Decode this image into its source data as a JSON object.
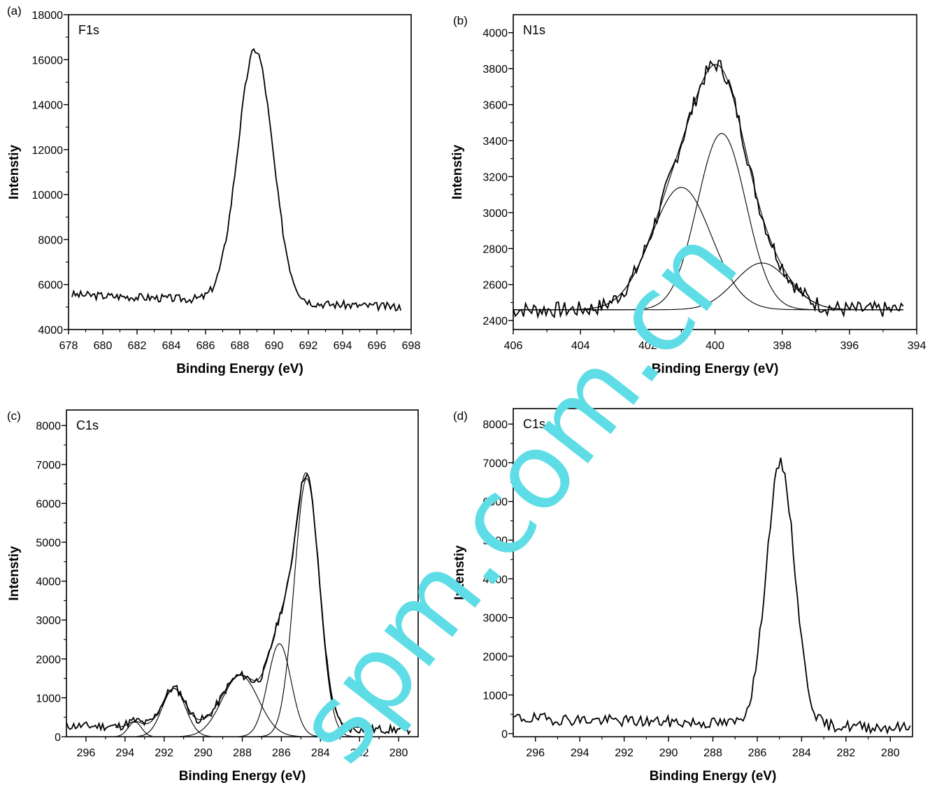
{
  "watermark": {
    "text": "spm.com.cn",
    "color": "#5fdde6"
  },
  "chart_data": [
    {
      "panel": "(a)",
      "type": "line",
      "peak_label": "F1s",
      "xlabel": "Binding Energy (eV)",
      "ylabel": "Intenstiy",
      "xlim": [
        678,
        698
      ],
      "ylim": [
        4000,
        18000
      ],
      "x_reversed": false,
      "xticks": [
        678,
        680,
        682,
        684,
        686,
        688,
        690,
        692,
        694,
        696,
        698
      ],
      "yticks": [
        4000,
        6000,
        8000,
        10000,
        12000,
        14000,
        16000,
        18000
      ],
      "series": [
        {
          "role": "measured",
          "x_range": [
            678.2,
            697.4
          ],
          "background": [
            5550,
            5000
          ],
          "peaks": [
            {
              "center": 688.9,
              "height": 11200,
              "fwhm": 2.4
            }
          ],
          "noise": 180,
          "seed": 3
        }
      ]
    },
    {
      "panel": "(b)",
      "type": "line",
      "peak_label": "N1s",
      "xlabel": "Binding Energy (eV)",
      "ylabel": "Intenstiy",
      "xlim": [
        406,
        394
      ],
      "ylim": [
        2350,
        4100
      ],
      "x_reversed": true,
      "xticks": [
        406,
        404,
        402,
        400,
        398,
        396,
        394
      ],
      "yticks": [
        2400,
        2600,
        2800,
        3000,
        3200,
        3400,
        3600,
        3800,
        4000
      ],
      "series": [
        {
          "role": "measured",
          "x_range": [
            406,
            394.4
          ],
          "background": [
            2460,
            2460
          ],
          "peaks": [
            {
              "center": 401.0,
              "height": 680,
              "fwhm": 2.1
            },
            {
              "center": 399.8,
              "height": 980,
              "fwhm": 1.7
            },
            {
              "center": 398.6,
              "height": 260,
              "fwhm": 1.9
            }
          ],
          "noise": 45,
          "seed": 7
        },
        {
          "role": "envelope",
          "x_range": [
            406,
            394.4
          ],
          "background": [
            2460,
            2460
          ],
          "peaks": [
            {
              "center": 401.0,
              "height": 680,
              "fwhm": 2.1
            },
            {
              "center": 399.8,
              "height": 980,
              "fwhm": 1.7
            },
            {
              "center": 398.6,
              "height": 260,
              "fwhm": 1.9
            }
          ]
        },
        {
          "role": "component",
          "x_range": [
            406,
            394.4
          ],
          "background": [
            2460,
            2460
          ],
          "peaks": [
            {
              "center": 401.0,
              "height": 680,
              "fwhm": 2.1
            }
          ]
        },
        {
          "role": "component",
          "x_range": [
            406,
            394.4
          ],
          "background": [
            2460,
            2460
          ],
          "peaks": [
            {
              "center": 399.8,
              "height": 980,
              "fwhm": 1.7
            }
          ]
        },
        {
          "role": "component",
          "x_range": [
            406,
            394.4
          ],
          "background": [
            2460,
            2460
          ],
          "peaks": [
            {
              "center": 398.6,
              "height": 260,
              "fwhm": 1.9
            }
          ]
        }
      ]
    },
    {
      "panel": "(c)",
      "type": "line",
      "peak_label": "C1s",
      "xlabel": "Binding Energy (eV)",
      "ylabel": "Intenstiy",
      "xlim": [
        297,
        279
      ],
      "ylim": [
        0,
        8400
      ],
      "x_reversed": true,
      "xticks": [
        296,
        294,
        292,
        290,
        288,
        286,
        284,
        282,
        280
      ],
      "yticks": [
        0,
        1000,
        2000,
        3000,
        4000,
        5000,
        6000,
        7000,
        8000
      ],
      "series": [
        {
          "role": "measured",
          "x_range": [
            297,
            279.4
          ],
          "background": [
            280,
            180
          ],
          "peaks": [
            {
              "center": 293.5,
              "height": 150,
              "fwhm": 0.8
            },
            {
              "center": 291.5,
              "height": 1000,
              "fwhm": 1.4
            },
            {
              "center": 288.1,
              "height": 1340,
              "fwhm": 2.2
            },
            {
              "center": 286.1,
              "height": 2150,
              "fwhm": 1.4
            },
            {
              "center": 284.7,
              "height": 6400,
              "fwhm": 1.5
            }
          ],
          "noise": 110,
          "seed": 11
        },
        {
          "role": "envelope",
          "x_range": [
            294.5,
            281.5
          ],
          "background": [
            240,
            240
          ],
          "peaks": [
            {
              "center": 293.5,
              "height": 150,
              "fwhm": 0.8
            },
            {
              "center": 291.5,
              "height": 1000,
              "fwhm": 1.4
            },
            {
              "center": 288.1,
              "height": 1340,
              "fwhm": 2.2
            },
            {
              "center": 286.1,
              "height": 2150,
              "fwhm": 1.4
            },
            {
              "center": 284.7,
              "height": 6400,
              "fwhm": 1.5
            }
          ]
        },
        {
          "role": "component",
          "x_range": [
            294.5,
            292.6
          ],
          "background": [
            0,
            0
          ],
          "peaks": [
            {
              "center": 293.5,
              "height": 380,
              "fwhm": 0.8
            }
          ]
        },
        {
          "role": "component",
          "x_range": [
            293.4,
            289.6
          ],
          "background": [
            0,
            0
          ],
          "peaks": [
            {
              "center": 291.5,
              "height": 1240,
              "fwhm": 1.4
            }
          ]
        },
        {
          "role": "component",
          "x_range": [
            291.2,
            285.0
          ],
          "background": [
            0,
            0
          ],
          "peaks": [
            {
              "center": 288.1,
              "height": 1580,
              "fwhm": 2.2
            }
          ]
        },
        {
          "role": "component",
          "x_range": [
            288.2,
            284.0
          ],
          "background": [
            0,
            0
          ],
          "peaks": [
            {
              "center": 286.1,
              "height": 2390,
              "fwhm": 1.4
            }
          ]
        },
        {
          "role": "component",
          "x_range": [
            288.0,
            282.0
          ],
          "background": [
            0,
            0
          ],
          "peaks": [
            {
              "center": 284.7,
              "height": 6640,
              "fwhm": 1.5
            }
          ]
        }
      ]
    },
    {
      "panel": "(d)",
      "type": "line",
      "peak_label": "C1s",
      "xlabel": "Binding Energy (eV)",
      "ylabel": "Intenstiy",
      "xlim": [
        297,
        279
      ],
      "ylim": [
        -80,
        8400
      ],
      "x_reversed": true,
      "xticks": [
        296,
        294,
        292,
        290,
        288,
        286,
        284,
        282,
        280
      ],
      "yticks": [
        0,
        1000,
        2000,
        3000,
        4000,
        5000,
        6000,
        7000,
        8000
      ],
      "series": [
        {
          "role": "measured",
          "x_range": [
            297,
            279.1
          ],
          "background": [
            400,
            150
          ],
          "peaks": [
            {
              "center": 284.95,
              "height": 6750,
              "fwhm": 1.5
            }
          ],
          "noise": 150,
          "seed": 19
        }
      ]
    }
  ]
}
